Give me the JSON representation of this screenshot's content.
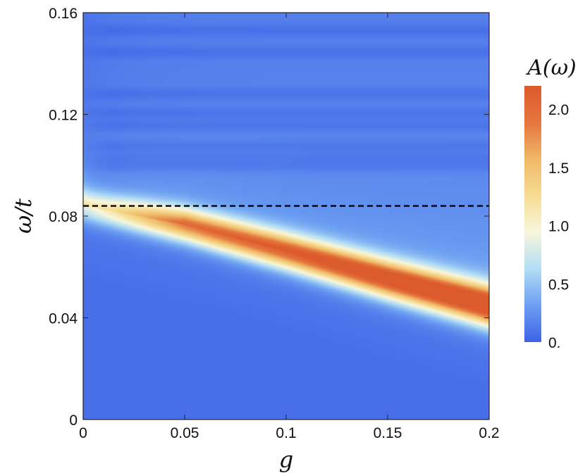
{
  "chart_data": {
    "type": "heatmap",
    "xlabel": "g",
    "ylabel": "ω/t",
    "xlim": [
      0,
      0.2
    ],
    "ylim": [
      0,
      0.16
    ],
    "x_ticks": [
      {
        "value": 0,
        "label": "0"
      },
      {
        "value": 0.05,
        "label": "0.05"
      },
      {
        "value": 0.1,
        "label": "0.1"
      },
      {
        "value": 0.15,
        "label": "0.15"
      },
      {
        "value": 0.2,
        "label": "0.2"
      }
    ],
    "y_ticks": [
      {
        "value": 0,
        "label": "0"
      },
      {
        "value": 0.04,
        "label": "0.04"
      },
      {
        "value": 0.08,
        "label": "0.08"
      },
      {
        "value": 0.12,
        "label": "0.12"
      },
      {
        "value": 0.16,
        "label": "0.16"
      }
    ],
    "colorbar": {
      "title": "A(ω)",
      "range": [
        0,
        2.2
      ],
      "ticks": [
        {
          "value": 0,
          "label": "0."
        },
        {
          "value": 0.5,
          "label": "0.5"
        },
        {
          "value": 1.0,
          "label": "1.0"
        },
        {
          "value": 1.5,
          "label": "1.5"
        },
        {
          "value": 2.0,
          "label": "2.0"
        }
      ],
      "colors": [
        "#3f62e6",
        "#6c9ff2",
        "#b2ddf4",
        "#f8f6dc",
        "#f6dc93",
        "#f0b868",
        "#e4753d",
        "#dc5b2c"
      ]
    },
    "reference_line": {
      "y": 0.084,
      "style": "dashed",
      "color": "#000000"
    },
    "band": {
      "description_points": [
        [
          0,
          0.084
        ],
        [
          0.05,
          0.0765
        ],
        [
          0.1,
          0.066
        ],
        [
          0.15,
          0.055
        ],
        [
          0.2,
          0.0445
        ]
      ],
      "peak_values": [
        [
          0,
          0.6
        ],
        [
          0.05,
          1.45
        ],
        [
          0.1,
          1.65
        ],
        [
          0.15,
          1.9
        ],
        [
          0.2,
          2.1
        ]
      ]
    },
    "stripes": [
      0.0995,
      0.103,
      0.1075,
      0.1155,
      0.1205,
      0.128,
      0.1445,
      0.153
    ]
  }
}
